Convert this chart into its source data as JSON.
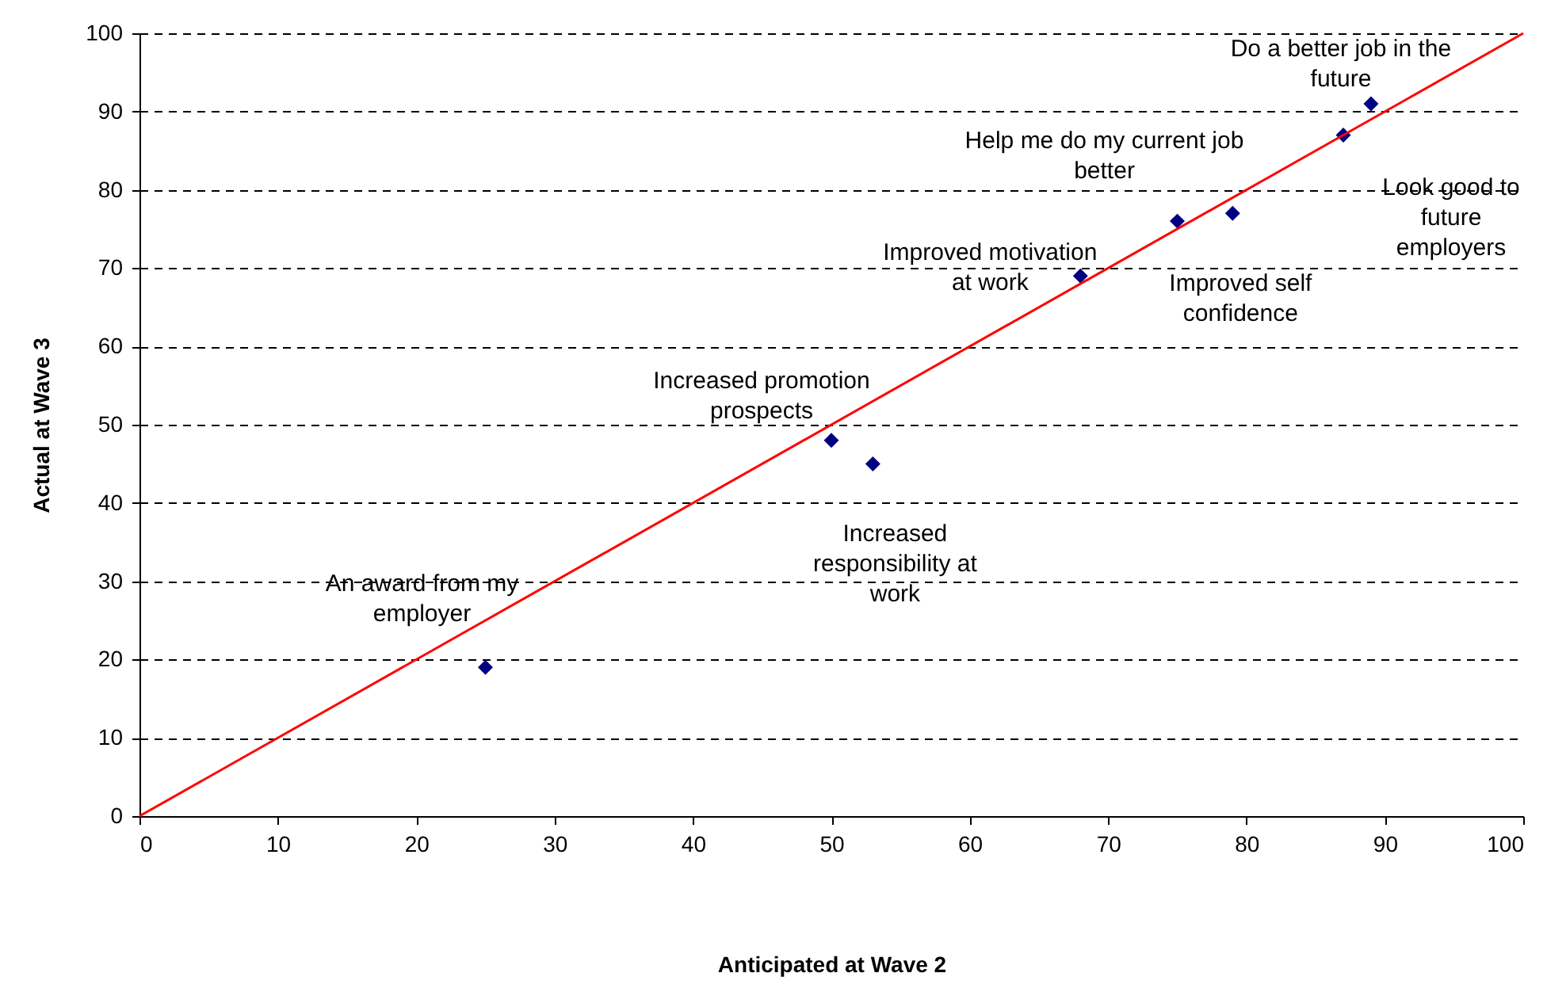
{
  "chart_data": {
    "type": "scatter",
    "xlabel": "Anticipated at Wave 2",
    "ylabel": "Actual at Wave 3",
    "x": [
      25,
      50,
      53,
      68,
      75,
      79,
      87,
      89
    ],
    "series": [
      {
        "color": "#000080",
        "marker": "diamond",
        "values": [
          19,
          48,
          45,
          69,
          76,
          77,
          87,
          91
        ]
      },
      {
        "type": "line",
        "color": "#ff0000",
        "x": [
          0,
          100
        ],
        "values": [
          0,
          100
        ],
        "line_style": "solid",
        "marker": "none"
      }
    ],
    "xlim": [
      0,
      100
    ],
    "xticks": [
      0,
      10,
      20,
      30,
      40,
      50,
      60,
      70,
      80,
      90,
      100
    ],
    "ylim": [
      0,
      100
    ],
    "yticks": [
      0,
      10,
      20,
      30,
      40,
      50,
      60,
      70,
      80,
      90,
      100
    ],
    "grid": "y",
    "annotations": [
      {
        "text": "An award from my\nemployer",
        "x": 25,
        "y": 19
      },
      {
        "text": "Increased promotion\nprospects",
        "x": 50,
        "y": 48
      },
      {
        "text": "Increased\nresponsibility at\nwork",
        "x": 53,
        "y": 45
      },
      {
        "text": "Improved motivation\nat work",
        "x": 68,
        "y": 69
      },
      {
        "text": "Help me do my current job\nbetter",
        "x": 75,
        "y": 76
      },
      {
        "text": "Improved self\nconfidence",
        "x": 79,
        "y": 77
      },
      {
        "text": "Look good to\nfuture\nemployers",
        "x": 87,
        "y": 87
      },
      {
        "text": "Do a better job in the\nfuture",
        "x": 89,
        "y": 91
      }
    ]
  }
}
